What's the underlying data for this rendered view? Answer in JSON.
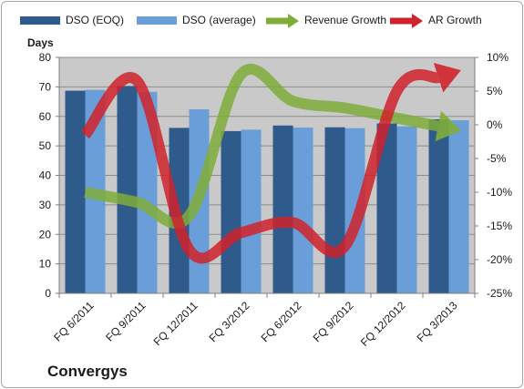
{
  "chart_data": {
    "type": "bar",
    "title": "Convergys",
    "ylabel": "Days",
    "ylim": [
      0,
      80
    ],
    "y2lim": [
      -25,
      10
    ],
    "y_ticks": [
      "0",
      "10",
      "20",
      "30",
      "40",
      "50",
      "60",
      "70",
      "80"
    ],
    "y2_ticks": [
      "-25%",
      "-20%",
      "-15%",
      "-10%",
      "-5%",
      "0%",
      "5%",
      "10%"
    ],
    "categories": [
      "FQ 6/2011",
      "FQ 9/2011",
      "FQ 12/2011",
      "FQ 3/2012",
      "FQ 6/2012",
      "FQ 9/2012",
      "FQ 12/2012",
      "FQ 3/2013"
    ],
    "grid": true,
    "legend_position": "top",
    "series": [
      {
        "name": "DSO (EOQ)",
        "kind": "bar",
        "axis": "left",
        "color": "#2e5a8c",
        "values": [
          68.7,
          70.3,
          56.1,
          55.0,
          56.9,
          56.3,
          57.6,
          59.0
        ]
      },
      {
        "name": "DSO (average)",
        "kind": "bar",
        "axis": "left",
        "color": "#6a9ed8",
        "values": [
          69.0,
          68.3,
          62.4,
          55.5,
          56.2,
          56.0,
          56.6,
          58.7
        ]
      },
      {
        "name": "Revenue Growth",
        "kind": "line",
        "axis": "right",
        "color": "#7fad3a",
        "values": [
          -10.0,
          -11.5,
          -13.5,
          7.5,
          3.5,
          2.5,
          1.0,
          -0.5
        ]
      },
      {
        "name": "AR Growth",
        "kind": "line",
        "axis": "right",
        "color": "#d0222a",
        "values": [
          -1.5,
          6.5,
          -18.5,
          -16.0,
          -14.5,
          -18.0,
          5.0,
          7.5
        ]
      }
    ]
  }
}
